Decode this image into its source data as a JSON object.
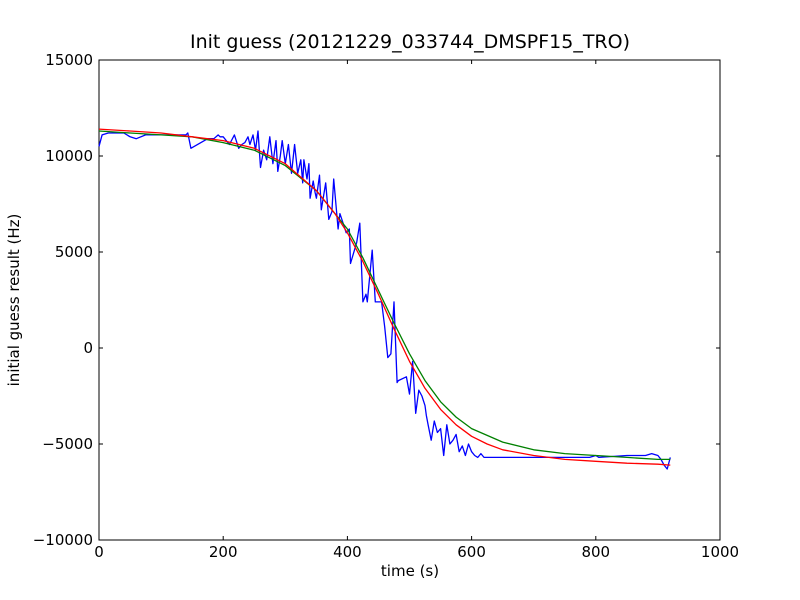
{
  "chart_data": {
    "type": "line",
    "title": "Init guess (20121229_033744_DMSPF15_TRO)",
    "xlabel": "time (s)",
    "ylabel": "initial guess result (Hz)",
    "xlim": [
      0,
      1000
    ],
    "ylim": [
      -10000,
      15000
    ],
    "xticks": [
      0,
      200,
      400,
      600,
      800,
      1000
    ],
    "yticks": [
      -10000,
      -5000,
      0,
      5000,
      10000,
      15000
    ],
    "grid": false,
    "series": [
      {
        "color": "#0000ff",
        "x": [
          0,
          5,
          15,
          40,
          50,
          60,
          75,
          100,
          140,
          143,
          148,
          175,
          185,
          192,
          195,
          200,
          210,
          218,
          225,
          230,
          235,
          240,
          243,
          248,
          252,
          256,
          260,
          265,
          270,
          275,
          280,
          285,
          288,
          292,
          295,
          300,
          305,
          310,
          315,
          320,
          325,
          328,
          330,
          335,
          338,
          340,
          345,
          348,
          350,
          355,
          358,
          365,
          370,
          375,
          378,
          385,
          388,
          393,
          398,
          403,
          405,
          415,
          420,
          425,
          430,
          432,
          440,
          445,
          450,
          455,
          460,
          465,
          470,
          475,
          480,
          482,
          495,
          500,
          505,
          510,
          515,
          520,
          525,
          527,
          530,
          535,
          540,
          545,
          550,
          555,
          560,
          565,
          570,
          575,
          580,
          585,
          590,
          595,
          600,
          605,
          610,
          615,
          620,
          625,
          630,
          640,
          650,
          655,
          660,
          665,
          670,
          675,
          680,
          690,
          695,
          700,
          705,
          710,
          715,
          720,
          725,
          730,
          735,
          740,
          745,
          750,
          760,
          765,
          770,
          775,
          780,
          790,
          800,
          805,
          850,
          870,
          880,
          890,
          900,
          905,
          910,
          915,
          920
        ],
        "y": [
          10500,
          11100,
          11200,
          11200,
          11000,
          10900,
          11100,
          11100,
          11100,
          11200,
          10400,
          10900,
          10900,
          11100,
          11000,
          11000,
          10600,
          11100,
          10400,
          10600,
          10700,
          11000,
          10600,
          11100,
          10300,
          11300,
          9400,
          10300,
          9800,
          11000,
          9600,
          10800,
          9200,
          10000,
          10800,
          9600,
          10600,
          9100,
          10600,
          9100,
          9800,
          8600,
          9800,
          8800,
          9600,
          7800,
          8700,
          8100,
          7800,
          9000,
          7200,
          8600,
          6700,
          7100,
          8800,
          6200,
          7000,
          6500,
          6000,
          6200,
          4400,
          5500,
          6500,
          2400,
          2800,
          2400,
          5100,
          2400,
          2400,
          2400,
          1100,
          -500,
          -300,
          2400,
          -1800,
          -1700,
          -1500,
          -2400,
          -700,
          -3400,
          -2200,
          -2500,
          -3000,
          -3500,
          -4000,
          -4800,
          -3800,
          -4400,
          -4200,
          -5600,
          -4000,
          -5000,
          -4800,
          -4500,
          -5400,
          -5100,
          -5600,
          -5000,
          -5400,
          -5600,
          -5700,
          -5500,
          -5700,
          -5700,
          -5700,
          -5700,
          -5700,
          -5700,
          -5700,
          -5700,
          -5700,
          -5700,
          -5700,
          -5700,
          -5700,
          -5700,
          -5700,
          -5700,
          -5700,
          -5700,
          -5700,
          -5700,
          -5700,
          -5700,
          -5700,
          -5700,
          -5700,
          -5700,
          -5700,
          -5700,
          -5700,
          -5700,
          -5600,
          -5700,
          -5600,
          -5600,
          -5600,
          -5500,
          -5600,
          -5800,
          -6100,
          -6300,
          -5700
        ]
      },
      {
        "color": "#008000",
        "x": [
          0,
          50,
          100,
          150,
          200,
          250,
          300,
          350,
          400,
          425,
          450,
          475,
          500,
          525,
          550,
          575,
          600,
          650,
          700,
          750,
          800,
          850,
          900,
          920
        ],
        "y": [
          11300,
          11200,
          11100,
          11000,
          10700,
          10300,
          9500,
          8200,
          6200,
          4700,
          3000,
          1300,
          -300,
          -1700,
          -2800,
          -3600,
          -4200,
          -4900,
          -5300,
          -5500,
          -5600,
          -5700,
          -5800,
          -5800
        ]
      },
      {
        "color": "#ff0000",
        "x": [
          0,
          50,
          100,
          150,
          200,
          250,
          300,
          350,
          380,
          400,
          425,
          450,
          475,
          500,
          525,
          550,
          575,
          600,
          625,
          650,
          700,
          750,
          800,
          850,
          900,
          920
        ],
        "y": [
          11400,
          11300,
          11200,
          11000,
          10800,
          10400,
          9600,
          8200,
          7000,
          6000,
          4500,
          2800,
          1000,
          -700,
          -2100,
          -3200,
          -4000,
          -4600,
          -5000,
          -5300,
          -5600,
          -5800,
          -5900,
          -6000,
          -6050,
          -6100
        ]
      }
    ]
  }
}
